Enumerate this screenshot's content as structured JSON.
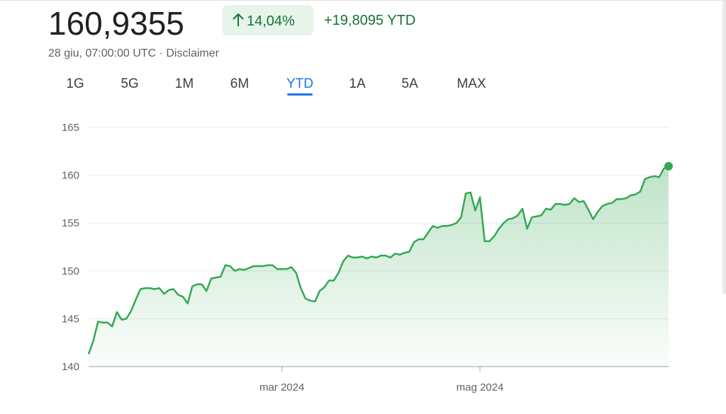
{
  "header": {
    "price": "160,9355",
    "change_percent": "14,04%",
    "change_value": "+19,8095 YTD",
    "timestamp": "28 giu, 07:00:00 UTC · Disclaimer"
  },
  "tabs": [
    "1G",
    "5G",
    "1M",
    "6M",
    "YTD",
    "1A",
    "5A",
    "MAX"
  ],
  "selected_tab": 4,
  "chart_data": {
    "type": "line",
    "color": "#34a853",
    "values": [
      141.3,
      142.7,
      144.7,
      144.6,
      144.6,
      144.2,
      145.7,
      144.9,
      145.0,
      145.8,
      147.0,
      148.1,
      148.2,
      148.2,
      148.1,
      148.2,
      147.6,
      148.0,
      148.1,
      147.5,
      147.3,
      146.6,
      148.4,
      148.6,
      148.6,
      147.9,
      149.2,
      149.3,
      149.4,
      150.6,
      150.5,
      150.0,
      150.2,
      150.1,
      150.3,
      150.5,
      150.5,
      150.5,
      150.6,
      150.6,
      150.2,
      150.2,
      150.2,
      150.4,
      149.8,
      148.2,
      147.1,
      146.9,
      146.8,
      147.9,
      148.3,
      149.0,
      149.0,
      149.8,
      151.0,
      151.6,
      151.4,
      151.4,
      151.5,
      151.3,
      151.5,
      151.4,
      151.6,
      151.6,
      151.4,
      151.8,
      151.7,
      151.9,
      152.0,
      153.0,
      153.3,
      153.3,
      154.0,
      154.7,
      154.5,
      154.7,
      154.7,
      154.8,
      155.0,
      155.6,
      158.1,
      158.2,
      156.3,
      157.7,
      153.1,
      153.1,
      153.6,
      154.4,
      155.0,
      155.4,
      155.5,
      155.8,
      156.5,
      154.4,
      155.6,
      155.7,
      155.8,
      156.5,
      156.4,
      157.0,
      157.0,
      156.9,
      157.0,
      157.6,
      157.2,
      157.3,
      156.4,
      155.4,
      156.2,
      156.8,
      157.0,
      157.1,
      157.5,
      157.5,
      157.6,
      157.9,
      158.0,
      158.3,
      159.6,
      159.8,
      159.9,
      159.8,
      160.7,
      160.94
    ],
    "xticks": [
      {
        "value": 41,
        "label": "mar 2024"
      },
      {
        "value": 83,
        "label": "mag 2024"
      }
    ],
    "ylim": [
      140,
      165
    ],
    "yticks": [
      140,
      145,
      150,
      155,
      160,
      165
    ],
    "grid": true
  }
}
